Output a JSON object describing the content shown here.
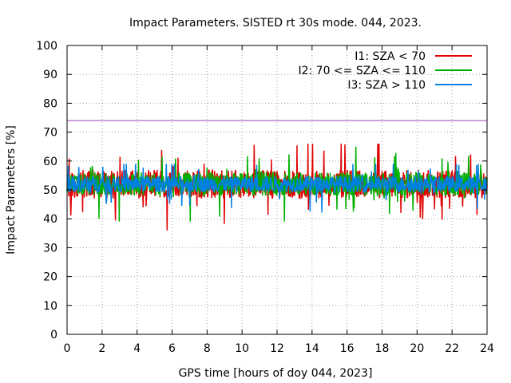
{
  "chart_data": {
    "type": "line",
    "title": "Impact Parameters. SISTED rt 30s mode. 044, 2023.",
    "xlabel": "GPS time [hours of doy 044, 2023]",
    "ylabel": "Impact Parameters [%]",
    "xlim": [
      0,
      24
    ],
    "ylim": [
      0,
      100
    ],
    "x_ticks": [
      "0",
      "2",
      "4",
      "6",
      "8",
      "10",
      "12",
      "14",
      "16",
      "18",
      "20",
      "22",
      "24"
    ],
    "y_ticks": [
      "0",
      "10",
      "20",
      "30",
      "40",
      "50",
      "60",
      "70",
      "80",
      "90",
      "100"
    ],
    "grid": true,
    "legend_position": "top-right",
    "series": [
      {
        "name": "I1: SZA < 70",
        "color": "#e00000",
        "approx_mean": 52,
        "approx_min": 36,
        "approx_max": 66
      },
      {
        "name": "I2: 70 <= SZA <= 110",
        "color": "#00b000",
        "approx_mean": 52,
        "approx_min": 39,
        "approx_max": 65
      },
      {
        "name": "I3: SZA > 110",
        "color": "#0080e0",
        "approx_mean": 52,
        "approx_min": 40,
        "approx_max": 59
      }
    ],
    "reference_line": {
      "y": 74,
      "color": "#a040c0"
    }
  }
}
